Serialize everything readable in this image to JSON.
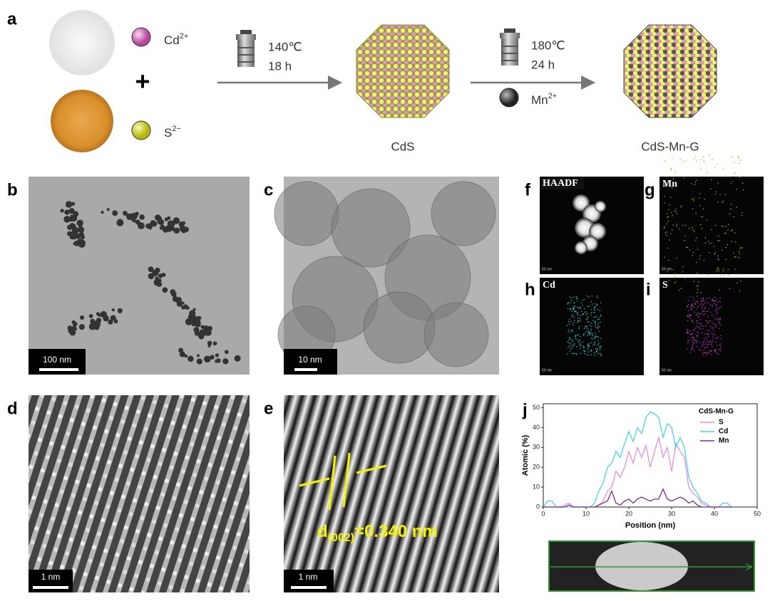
{
  "panel_labels": [
    "a",
    "b",
    "c",
    "d",
    "e",
    "f",
    "g",
    "h",
    "i",
    "j"
  ],
  "scheme": {
    "precursors": [
      {
        "ion": "Cd",
        "charge": "2+"
      },
      {
        "ion": "S",
        "charge": "2−"
      }
    ],
    "plus": "+",
    "step1": {
      "temperature": "140℃",
      "time": "18 h"
    },
    "step2": {
      "temperature": "180℃",
      "time": "24 h",
      "dopant": {
        "ion": "Mn",
        "charge": "2+"
      }
    },
    "products": [
      "CdS",
      "CdS-Mn-G"
    ]
  },
  "tem": {
    "b_scale": "100 nm",
    "c_scale": "10 nm",
    "d_scale": "1 nm",
    "e_scale": "1 nm",
    "e_annotation": {
      "d": "d",
      "sub": "(002)",
      "rest": "=0.340 nm"
    }
  },
  "eds_maps": [
    {
      "label": "HAADF",
      "scale": "50 nm"
    },
    {
      "label": "Mn",
      "scale": "50 nm"
    },
    {
      "label": "Cd",
      "scale": "50 nm"
    },
    {
      "label": "S",
      "scale": "50 nm"
    }
  ],
  "chart_data": {
    "type": "line",
    "legend_title": "CdS-Mn-G",
    "x_label": "Position (nm)",
    "y_label": "Atomic (%)",
    "x": [
      0,
      1,
      2,
      3,
      4,
      5,
      6,
      7,
      8,
      9,
      10,
      11,
      12,
      13,
      14,
      15,
      16,
      17,
      18,
      19,
      20,
      21,
      22,
      23,
      24,
      25,
      26,
      27,
      28,
      29,
      30,
      31,
      32,
      33,
      34,
      35,
      36,
      37,
      38,
      39,
      40,
      41,
      42,
      43,
      44
    ],
    "series": [
      {
        "name": "S",
        "color": "#e68ee0",
        "values": [
          0,
          0,
          0,
          0,
          0,
          1,
          2,
          0,
          0,
          0,
          0,
          0,
          0,
          1,
          3,
          8,
          10,
          18,
          15,
          20,
          28,
          22,
          30,
          25,
          31,
          20,
          28,
          35,
          25,
          30,
          18,
          32,
          28,
          25,
          10,
          7,
          5,
          2,
          1,
          0,
          0,
          0,
          0,
          0,
          0
        ]
      },
      {
        "name": "Cd",
        "color": "#46d5e0",
        "values": [
          0,
          3,
          3,
          0,
          0,
          0,
          0,
          0,
          0,
          0,
          0,
          0,
          2,
          8,
          12,
          20,
          22,
          28,
          25,
          32,
          38,
          33,
          40,
          37,
          45,
          48,
          47,
          45,
          35,
          42,
          40,
          30,
          35,
          30,
          15,
          10,
          7,
          3,
          2,
          0,
          0,
          0,
          2,
          2,
          0
        ]
      },
      {
        "name": "Mn",
        "color": "#7b2a8c",
        "values": [
          0,
          0,
          0,
          0,
          0,
          0,
          1,
          0,
          0,
          0,
          0,
          0,
          0,
          1,
          2,
          3,
          8,
          2,
          1,
          3,
          4,
          2,
          4,
          5,
          4,
          3,
          4,
          4,
          9,
          4,
          3,
          4,
          5,
          4,
          2,
          3,
          1,
          0,
          0,
          0,
          0,
          0,
          0,
          0,
          0
        ]
      }
    ],
    "xlim": [
      0,
      50
    ],
    "xticks": [
      0,
      10,
      20,
      30,
      40,
      50
    ],
    "ylim": [
      0,
      52
    ],
    "yticks": [
      0,
      10,
      20,
      30,
      40,
      50
    ]
  }
}
